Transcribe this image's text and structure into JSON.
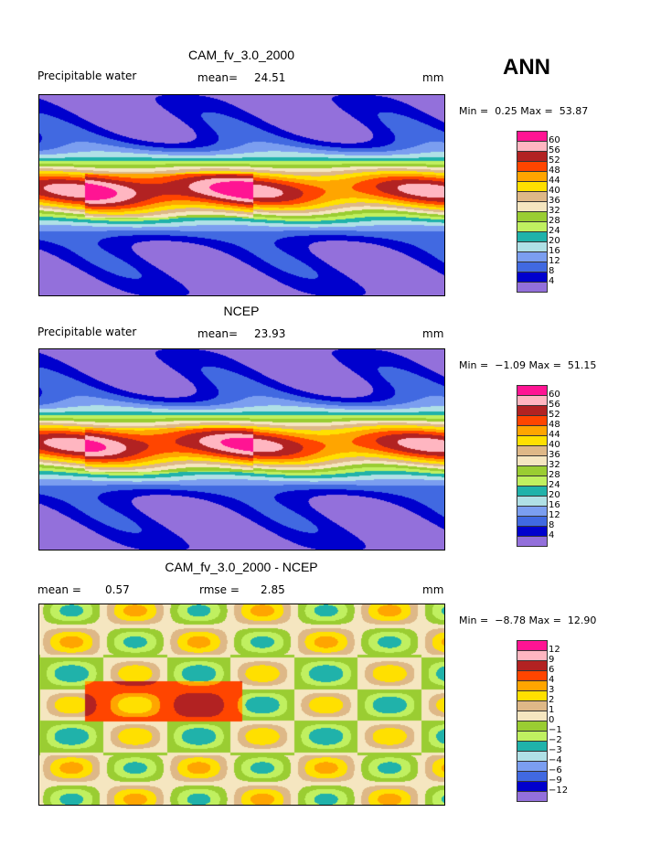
{
  "season": "ANN",
  "colorbar_colors": [
    "#ff1493",
    "#ffb6c1",
    "#b22222",
    "#ff4500",
    "#ffa500",
    "#ffe000",
    "#deb887",
    "#f5e6c0",
    "#9acd32",
    "#c0f060",
    "#20b2aa",
    "#b0e0e6",
    "#7b9ef0",
    "#4169e1",
    "#0000cd",
    "#9370db"
  ],
  "chart_data": [
    {
      "type": "heatmap",
      "title": "CAM_fv_3.0_2000",
      "left_label": "Precipitable water",
      "mean_label": "mean=",
      "mean": "24.51",
      "units": "mm",
      "min_label": "Min =",
      "min": "0.25",
      "max_label": "Max =",
      "max": "53.87",
      "levels": [
        "60",
        "56",
        "52",
        "48",
        "44",
        "40",
        "36",
        "32",
        "28",
        "24",
        "20",
        "16",
        "12",
        "8",
        "4"
      ]
    },
    {
      "type": "heatmap",
      "title": "NCEP",
      "left_label": "Precipitable water",
      "mean_label": "mean=",
      "mean": "23.93",
      "units": "mm",
      "min_label": "Min =",
      "min": "−1.09",
      "max_label": "Max =",
      "max": "51.15",
      "levels": [
        "60",
        "56",
        "52",
        "48",
        "44",
        "40",
        "36",
        "32",
        "28",
        "24",
        "20",
        "16",
        "12",
        "8",
        "4"
      ]
    },
    {
      "type": "heatmap",
      "title": "CAM_fv_3.0_2000 - NCEP",
      "left_label": "mean =",
      "mean_label": "rmse =",
      "left_value": "0.57",
      "mean": "2.85",
      "units": "mm",
      "min_label": "Min =",
      "min": "−8.78",
      "max_label": "Max =",
      "max": "12.90",
      "levels": [
        "12",
        "9",
        "6",
        "4",
        "3",
        "2",
        "1",
        "0",
        "−1",
        "−2",
        "−3",
        "−4",
        "−6",
        "−9",
        "−12"
      ]
    }
  ]
}
